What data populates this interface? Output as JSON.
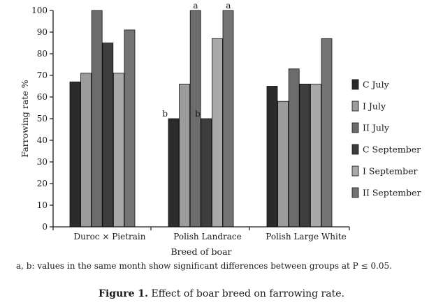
{
  "chart_data": {
    "type": "bar",
    "categories": [
      "Duroc × Pietrain",
      "Polish Landrace",
      "Polish Large White"
    ],
    "series": [
      {
        "name": "C July",
        "values": [
          67,
          50,
          65
        ],
        "color": "#2b2b2b"
      },
      {
        "name": "I July",
        "values": [
          71,
          66,
          58
        ],
        "color": "#9c9c9c"
      },
      {
        "name": "II July",
        "values": [
          100,
          100,
          73
        ],
        "color": "#6c6c6c"
      },
      {
        "name": "C September",
        "values": [
          85,
          50,
          66
        ],
        "color": "#3d3d3d"
      },
      {
        "name": "I September",
        "values": [
          71,
          87,
          66
        ],
        "color": "#a9a9a9"
      },
      {
        "name": "II September",
        "values": [
          91,
          100,
          87
        ],
        "color": "#747474"
      }
    ],
    "annotations": [
      {
        "category": "Polish Landrace",
        "series": "C July",
        "text": "b"
      },
      {
        "category": "Polish Landrace",
        "series": "II July",
        "text": "a"
      },
      {
        "category": "Polish Landrace",
        "series": "C September",
        "text": "b"
      },
      {
        "category": "Polish Landrace",
        "series": "II September",
        "text": "a"
      }
    ],
    "ylabel": "Farrowing rate %",
    "xlabel": "Breed of boar",
    "ylim": [
      0,
      100
    ],
    "yticks": [
      0,
      10,
      20,
      30,
      40,
      50,
      60,
      70,
      80,
      90,
      100
    ],
    "legend_position": "right",
    "grid": false
  },
  "footnote": "a, b: values in the same month show significant differences between groups at P ≤ 0.05.",
  "caption": {
    "label": "Figure 1.",
    "text": "Effect of boar breed on farrowing rate."
  }
}
